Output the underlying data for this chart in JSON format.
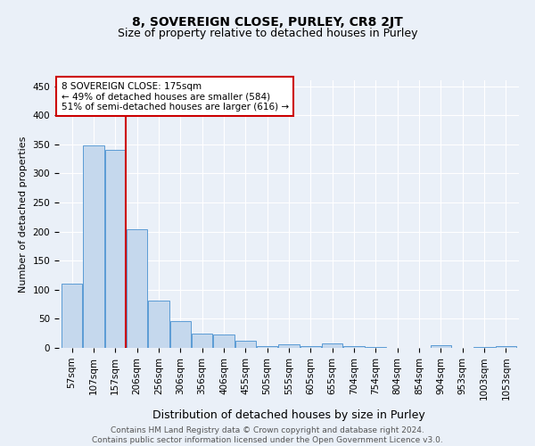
{
  "title": "8, SOVEREIGN CLOSE, PURLEY, CR8 2JT",
  "subtitle": "Size of property relative to detached houses in Purley",
  "xlabel": "Distribution of detached houses by size in Purley",
  "ylabel": "Number of detached properties",
  "categories": [
    "57sqm",
    "107sqm",
    "157sqm",
    "206sqm",
    "256sqm",
    "306sqm",
    "356sqm",
    "406sqm",
    "455sqm",
    "505sqm",
    "555sqm",
    "605sqm",
    "655sqm",
    "704sqm",
    "754sqm",
    "804sqm",
    "854sqm",
    "904sqm",
    "953sqm",
    "1003sqm",
    "1053sqm"
  ],
  "values": [
    110,
    348,
    340,
    204,
    82,
    46,
    25,
    23,
    12,
    3,
    6,
    3,
    8,
    3,
    1,
    0,
    0,
    5,
    0,
    2,
    3
  ],
  "bar_color": "#c5d8ed",
  "bar_edge_color": "#5b9bd5",
  "property_line_x": 2.5,
  "property_label": "8 SOVEREIGN CLOSE: 175sqm",
  "annotation_line1": "← 49% of detached houses are smaller (584)",
  "annotation_line2": "51% of semi-detached houses are larger (616) →",
  "annotation_box_color": "#ffffff",
  "annotation_box_edge": "#cc0000",
  "property_line_color": "#cc0000",
  "ylim": [
    0,
    460
  ],
  "yticks": [
    0,
    50,
    100,
    150,
    200,
    250,
    300,
    350,
    400,
    450
  ],
  "footer_line1": "Contains HM Land Registry data © Crown copyright and database right 2024.",
  "footer_line2": "Contains public sector information licensed under the Open Government Licence v3.0.",
  "background_color": "#eaf0f8",
  "grid_color": "#ffffff",
  "title_fontsize": 10,
  "subtitle_fontsize": 9,
  "ylabel_fontsize": 8,
  "xlabel_fontsize": 9,
  "tick_fontsize": 7.5,
  "footer_fontsize": 6.5
}
